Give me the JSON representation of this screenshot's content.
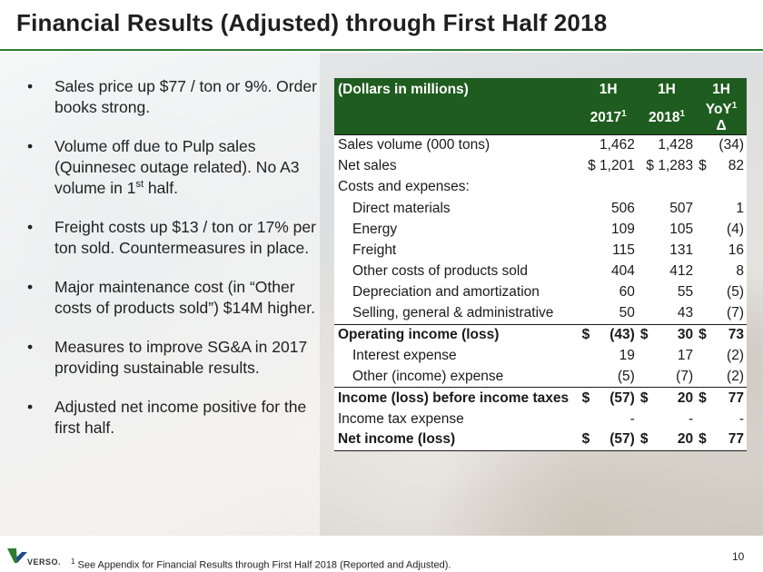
{
  "title": "Financial Results (Adjusted) through First Half 2018",
  "bullets": [
    {
      "text": "Sales price up $77 / ton or 9%. Order books strong."
    },
    {
      "text_before": "Volume off due to Pulp sales (Quinnesec outage related).  No A3 volume in 1",
      "sup": "st",
      "text_after": " half."
    },
    {
      "text": "Freight costs up $13 / ton or 17% per ton sold.  Countermeasures in place."
    },
    {
      "text": "Major maintenance cost (in “Other costs of products sold”) $14M higher."
    },
    {
      "text": "Measures to improve SG&A in 2017 providing sustainable results."
    },
    {
      "text": "Adjusted net income positive for the first half."
    }
  ],
  "table": {
    "header": {
      "label": "(Dollars in millions)",
      "cols": [
        {
          "line1": "1H",
          "line2": "2017",
          "sup": "1",
          "after": ""
        },
        {
          "line1": "1H",
          "line2": "2018",
          "sup": "1",
          "after": ""
        },
        {
          "line1": "1H",
          "line2": "YoY",
          "sup": "1",
          "after": " Δ"
        }
      ]
    },
    "rows": [
      {
        "label": "Sales volume (000 tons)",
        "c1": "1,462",
        "c2": "1,428",
        "c3": "(34)"
      },
      {
        "label": "Net sales",
        "c1": "$ 1,201",
        "c2": "$ 1,283",
        "c3d": "$",
        "c3": "82"
      },
      {
        "label": "Costs and expenses:",
        "c1": "",
        "c2": "",
        "c3": ""
      },
      {
        "label": "Direct materials",
        "c1": "506",
        "c2": "507",
        "c3": "1"
      },
      {
        "label": "Energy",
        "c1": "109",
        "c2": "105",
        "c3": "(4)"
      },
      {
        "label": "Freight",
        "c1": "115",
        "c2": "131",
        "c3": "16"
      },
      {
        "label": "Other costs of products sold",
        "c1": "404",
        "c2": "412",
        "c3": "8"
      },
      {
        "label": "Depreciation and amortization",
        "c1": "60",
        "c2": "55",
        "c3": "(5)"
      },
      {
        "label": "Selling, general & administrative",
        "c1": "50",
        "c2": "43",
        "c3": "(7)"
      },
      {
        "label": "Operating income (loss)",
        "c1d": "$",
        "c1": "(43)",
        "c2d": "$",
        "c2": "30",
        "c3d": "$",
        "c3": "73"
      },
      {
        "label": "Interest expense",
        "c1": "19",
        "c2": "17",
        "c3": "(2)"
      },
      {
        "label": "Other (income) expense",
        "c1": "(5)",
        "c2": "(7)",
        "c3": "(2)"
      },
      {
        "label": "Income (loss) before income taxes",
        "c1d": "$",
        "c1": "(57)",
        "c2d": "$",
        "c2": "20",
        "c3d": "$",
        "c3": "77"
      },
      {
        "label": "Income tax expense",
        "c1": "-",
        "c2": "-",
        "c3": "-"
      },
      {
        "label": "Net income (loss)",
        "c1d": "$",
        "c1": "(57)",
        "c2d": "$",
        "c2": "20",
        "c3d": "$",
        "c3": "77"
      }
    ]
  },
  "footer": {
    "logo_text": "VERSO.",
    "footnote_sup": "1",
    "footnote": " See Appendix for Financial Results through First Half 2018 (Reported and Adjusted).",
    "page_number": "10"
  },
  "colors": {
    "accent": "#2e7d32",
    "header_bg": "#1f5c1f"
  }
}
